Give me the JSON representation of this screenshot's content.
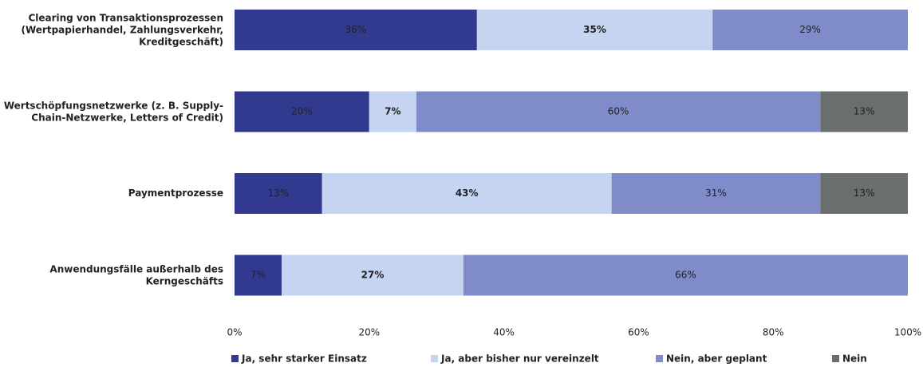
{
  "chart_data": {
    "type": "stacked-barh",
    "categories": [
      "Clearing von Transaktionsprozessen\n(Wertpapierhandel, Zahlungsverkehr,\nKreditgeschäft)",
      "Wertschöpfungsnetzwerke (z. B. Supply-\nChain-Netzwerke, Letters of Credit)",
      "Paymentprozesse",
      "Anwendungsfälle außerhalb des\nKerngeschäfts"
    ],
    "series": [
      {
        "name": "Ja, sehr starker Einsatz",
        "color": "#323a8f",
        "values": [
          36,
          20,
          13,
          7
        ],
        "value_labels": [
          "36%",
          "20%",
          "13%",
          "7%"
        ]
      },
      {
        "name": "Ja, aber bisher nur vereinzelt",
        "color": "#c5d4f0",
        "values": [
          35,
          7,
          43,
          27
        ],
        "value_labels": [
          "35%",
          "7%",
          "43%",
          "27%"
        ]
      },
      {
        "name": "Nein, aber geplant",
        "color": "#7f8cc9",
        "values": [
          29,
          60,
          31,
          66
        ],
        "value_labels": [
          "29%",
          "60%",
          "31%",
          "66%"
        ]
      },
      {
        "name": "Nein",
        "color": "#6a6e6e",
        "values": [
          null,
          13,
          13,
          null
        ],
        "value_labels": [
          null,
          "13%",
          "13%",
          null
        ]
      }
    ],
    "xlim": [
      0,
      100
    ],
    "xticks": [
      {
        "value": 0,
        "label": "0%"
      },
      {
        "value": 20,
        "label": "20%"
      },
      {
        "value": 40,
        "label": "40%"
      },
      {
        "value": 60,
        "label": "60%"
      },
      {
        "value": 80,
        "label": "80%"
      },
      {
        "value": 100,
        "label": "100%"
      }
    ],
    "legend": "bottom"
  }
}
